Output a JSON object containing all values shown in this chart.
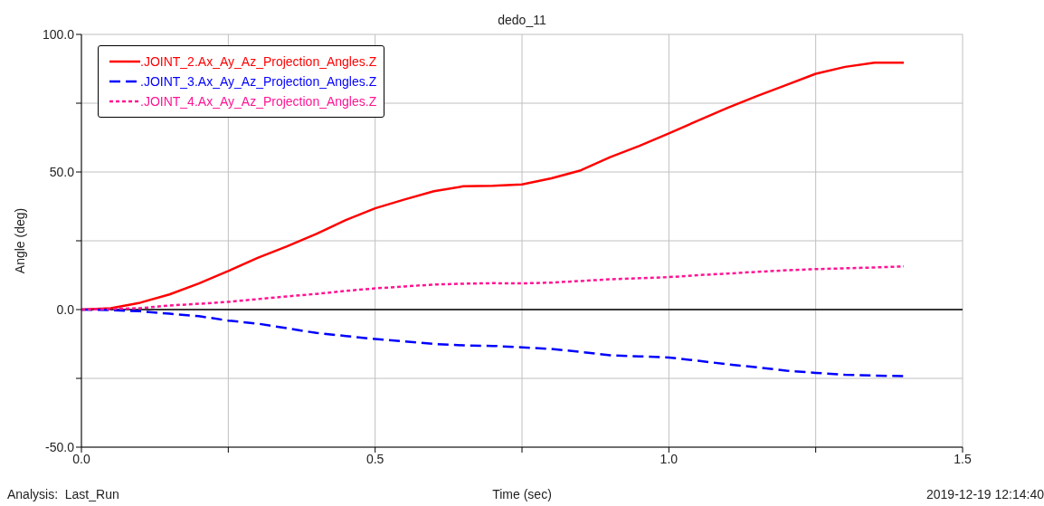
{
  "chart_data": {
    "type": "line",
    "title": "dedo_11",
    "xlabel": "Time (sec)",
    "ylabel": "Angle (deg)",
    "annotations": [
      "Analysis:  Last_Run",
      "2019-12-19 12:14:40"
    ],
    "x": [
      0,
      0.05,
      0.1,
      0.15,
      0.2,
      0.25,
      0.3,
      0.35,
      0.4,
      0.45,
      0.5,
      0.55,
      0.6,
      0.65,
      0.7,
      0.75,
      0.8,
      0.85,
      0.9,
      0.95,
      1.0,
      1.05,
      1.1,
      1.15,
      1.2,
      1.25,
      1.3,
      1.35,
      1.4
    ],
    "series": [
      {
        "name": ".JOINT_2.Ax_Ay_Az_Projection_Angles.Z",
        "color": "#ff0000",
        "line_style": "solid",
        "values": [
          0,
          0.5,
          2.5,
          5.5,
          9.5,
          14,
          18.8,
          23,
          27.5,
          32.5,
          36.8,
          40,
          43,
          44.8,
          45,
          45.5,
          47.7,
          50.6,
          55.4,
          59.5,
          64,
          68.7,
          73.3,
          77.6,
          81.6,
          85.7,
          88.2,
          89.7,
          89.7
        ]
      },
      {
        "name": ".JOINT_3.Ax_Ay_Az_Projection_Angles.Z",
        "color": "#0000ff",
        "line_style": "dashed",
        "values": [
          0,
          -0.2,
          -0.6,
          -1.5,
          -2.4,
          -4,
          -5.1,
          -6.8,
          -8.5,
          -9.6,
          -10.7,
          -11.6,
          -12.5,
          -13,
          -13.2,
          -13.7,
          -14.3,
          -15.4,
          -16.6,
          -17,
          -17.4,
          -18.6,
          -19.9,
          -21,
          -22.2,
          -23,
          -23.7,
          -24,
          -24.2
        ]
      },
      {
        "name": ".JOINT_4.Ax_Ay_Az_Projection_Angles.Z",
        "color": "#ff1493",
        "line_style": "dotted",
        "values": [
          0,
          0.2,
          0.5,
          1.5,
          2.1,
          2.8,
          3.8,
          4.8,
          5.7,
          6.8,
          7.7,
          8.4,
          9.1,
          9.4,
          9.6,
          9.5,
          9.8,
          10.4,
          11,
          11.4,
          11.8,
          12.5,
          13.1,
          13.7,
          14.3,
          14.7,
          15,
          15.3,
          15.7
        ]
      }
    ],
    "xlim": [
      0,
      1.5
    ],
    "xticks": [
      {
        "value": 0,
        "label": "0.0"
      },
      {
        "value": 0.25,
        "label": null
      },
      {
        "value": 0.5,
        "label": "0.5"
      },
      {
        "value": 0.75,
        "label": null
      },
      {
        "value": 1.0,
        "label": "1.0"
      },
      {
        "value": 1.25,
        "label": null
      },
      {
        "value": 1.5,
        "label": "1.5"
      }
    ],
    "ylim": [
      -50,
      100
    ],
    "yticks": [
      {
        "value": -50,
        "label": "-50.0"
      },
      {
        "value": -25,
        "label": null
      },
      {
        "value": 0,
        "label": "0.0"
      },
      {
        "value": 25,
        "label": null
      },
      {
        "value": 50,
        "label": "50.0"
      },
      {
        "value": 75,
        "label": null
      },
      {
        "value": 100,
        "label": "100.0"
      }
    ],
    "ref_lines": [
      {
        "axis": "y",
        "value": 0,
        "color": "#000000"
      }
    ],
    "grid": true,
    "legend": "top left",
    "marker": "none"
  }
}
